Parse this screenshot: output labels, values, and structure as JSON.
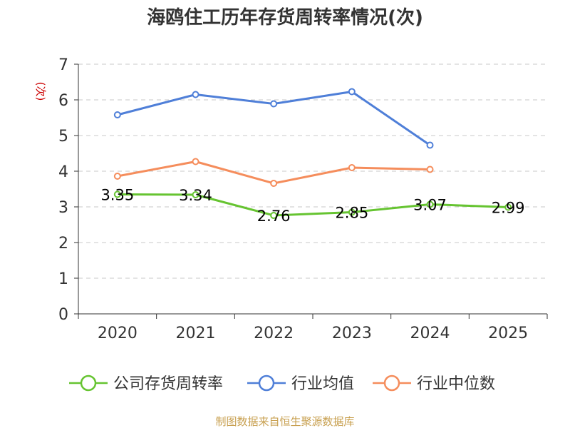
{
  "chart_data": {
    "type": "line",
    "title": "海鸥住工历年存货周转率情况(次)",
    "ylabel": "(次)",
    "xlabel": "",
    "categories": [
      "2020",
      "2021",
      "2022",
      "2023",
      "2024",
      "2025"
    ],
    "yticks": [
      "0",
      "1",
      "2",
      "3",
      "4",
      "5",
      "6",
      "7"
    ],
    "ylim": [
      0,
      7
    ],
    "grid": true,
    "legend_position": "bottom",
    "series": [
      {
        "name": "公司存货周转率",
        "color": "#66c431",
        "values": [
          3.35,
          3.34,
          2.76,
          2.85,
          3.07,
          2.99
        ],
        "labels": [
          "3.35",
          "3.34",
          "2.76",
          "2.85",
          "3.07",
          "2.99"
        ]
      },
      {
        "name": "行业均值",
        "color": "#4f7fd8",
        "values": [
          5.58,
          6.15,
          5.89,
          6.23,
          4.73,
          null
        ]
      },
      {
        "name": "行业中位数",
        "color": "#f58d5c",
        "values": [
          3.86,
          4.27,
          3.66,
          4.1,
          4.05,
          null
        ]
      }
    ],
    "source": "制图数据来自恒生聚源数据库"
  }
}
